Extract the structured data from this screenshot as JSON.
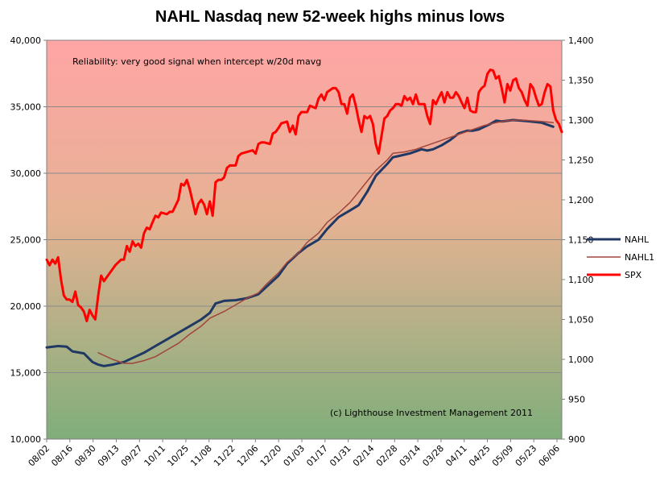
{
  "chart_data": {
    "type": "line",
    "title": "NAHL Nasdaq new 52-week highs minus lows",
    "annotations": {
      "reliability": "Reliability: very good signal when intercept w/20d mavg",
      "copyright": "(c) Lighthouse Investment Management  2011"
    },
    "x_ticks": [
      "08/02",
      "08/16",
      "08/30",
      "09/13",
      "09/27",
      "10/11",
      "10/25",
      "11/08",
      "11/22",
      "12/06",
      "12/20",
      "01/03",
      "01/17",
      "01/31",
      "02/14",
      "02/28",
      "03/14",
      "03/28",
      "04/11",
      "04/25",
      "05/09",
      "05/23",
      "06/06"
    ],
    "y_left": {
      "ticks": [
        "10,000",
        "15,000",
        "20,000",
        "25,000",
        "30,000",
        "35,000",
        "40,000"
      ],
      "ylim": [
        10000,
        40000
      ]
    },
    "y_right": {
      "ticks": [
        "900",
        "950",
        "1,000",
        "1,050",
        "1,100",
        "1,150",
        "1,200",
        "1,250",
        "1,300",
        "1,350",
        "1,400"
      ],
      "ylim": [
        900,
        1400
      ]
    },
    "legend_position": "right",
    "gridlines": true,
    "series": [
      {
        "name": "NAHL",
        "axis": "left",
        "color": "#1f3864",
        "points": [
          [
            0,
            16900
          ],
          [
            4,
            17000
          ],
          [
            7,
            16950
          ],
          [
            9,
            16600
          ],
          [
            13,
            16450
          ],
          [
            16,
            15800
          ],
          [
            18,
            15600
          ],
          [
            20,
            15500
          ],
          [
            23,
            15600
          ],
          [
            27,
            15800
          ],
          [
            30,
            16100
          ],
          [
            34,
            16500
          ],
          [
            38,
            17000
          ],
          [
            42,
            17500
          ],
          [
            46,
            18000
          ],
          [
            50,
            18500
          ],
          [
            54,
            19000
          ],
          [
            57,
            19500
          ],
          [
            59,
            20200
          ],
          [
            62,
            20400
          ],
          [
            66,
            20450
          ],
          [
            70,
            20600
          ],
          [
            74,
            20900
          ],
          [
            77,
            21500
          ],
          [
            81,
            22300
          ],
          [
            84,
            23200
          ],
          [
            88,
            24000
          ],
          [
            91,
            24500
          ],
          [
            95,
            25000
          ],
          [
            98,
            25800
          ],
          [
            102,
            26700
          ],
          [
            106,
            27200
          ],
          [
            109,
            27600
          ],
          [
            112,
            28600
          ],
          [
            115,
            29800
          ],
          [
            119,
            30700
          ],
          [
            121,
            31200
          ],
          [
            123,
            31300
          ],
          [
            127,
            31500
          ],
          [
            131,
            31800
          ],
          [
            133,
            31700
          ],
          [
            135,
            31800
          ],
          [
            138,
            32100
          ],
          [
            141,
            32500
          ],
          [
            144,
            33000
          ],
          [
            147,
            33200
          ],
          [
            149,
            33200
          ],
          [
            151,
            33300
          ],
          [
            153,
            33500
          ],
          [
            155,
            33700
          ],
          [
            157,
            33950
          ],
          [
            159,
            33900
          ],
          [
            163,
            34000
          ],
          [
            166,
            33950
          ],
          [
            169,
            33900
          ],
          [
            173,
            33800
          ],
          [
            177,
            33500
          ]
        ]
      },
      {
        "name": "NAHL1",
        "axis": "left",
        "color": "#a0453c",
        "points": [
          [
            18,
            16500
          ],
          [
            20,
            16300
          ],
          [
            23,
            16000
          ],
          [
            27,
            15700
          ],
          [
            30,
            15700
          ],
          [
            34,
            15900
          ],
          [
            38,
            16200
          ],
          [
            42,
            16700
          ],
          [
            46,
            17200
          ],
          [
            50,
            17900
          ],
          [
            54,
            18500
          ],
          [
            57,
            19100
          ],
          [
            62,
            19600
          ],
          [
            66,
            20100
          ],
          [
            70,
            20600
          ],
          [
            74,
            21000
          ],
          [
            77,
            21700
          ],
          [
            81,
            22500
          ],
          [
            84,
            23300
          ],
          [
            88,
            24000
          ],
          [
            91,
            24800
          ],
          [
            95,
            25500
          ],
          [
            98,
            26300
          ],
          [
            102,
            27000
          ],
          [
            106,
            27800
          ],
          [
            109,
            28600
          ],
          [
            112,
            29400
          ],
          [
            115,
            30200
          ],
          [
            119,
            31000
          ],
          [
            121,
            31500
          ],
          [
            125,
            31600
          ],
          [
            129,
            31800
          ],
          [
            133,
            32100
          ],
          [
            137,
            32400
          ],
          [
            141,
            32700
          ],
          [
            145,
            33000
          ],
          [
            149,
            33300
          ],
          [
            153,
            33600
          ],
          [
            157,
            33800
          ],
          [
            161,
            33950
          ],
          [
            165,
            34000
          ],
          [
            169,
            33950
          ],
          [
            173,
            33900
          ],
          [
            177,
            33800
          ]
        ]
      },
      {
        "name": "SPX",
        "axis": "right",
        "color": "#ff0000",
        "points": [
          [
            0,
            1125
          ],
          [
            1,
            1118
          ],
          [
            2,
            1125
          ],
          [
            3,
            1120
          ],
          [
            4,
            1128
          ],
          [
            5,
            1100
          ],
          [
            6,
            1080
          ],
          [
            7,
            1075
          ],
          [
            8,
            1075
          ],
          [
            9,
            1072
          ],
          [
            10,
            1085
          ],
          [
            11,
            1068
          ],
          [
            12,
            1065
          ],
          [
            13,
            1060
          ],
          [
            14,
            1048
          ],
          [
            15,
            1062
          ],
          [
            16,
            1055
          ],
          [
            17,
            1050
          ],
          [
            18,
            1080
          ],
          [
            19,
            1105
          ],
          [
            20,
            1098
          ],
          [
            22,
            1108
          ],
          [
            24,
            1118
          ],
          [
            26,
            1125
          ],
          [
            27,
            1125
          ],
          [
            28,
            1142
          ],
          [
            29,
            1135
          ],
          [
            30,
            1148
          ],
          [
            31,
            1142
          ],
          [
            32,
            1145
          ],
          [
            33,
            1140
          ],
          [
            34,
            1158
          ],
          [
            35,
            1165
          ],
          [
            36,
            1163
          ],
          [
            37,
            1172
          ],
          [
            38,
            1180
          ],
          [
            39,
            1178
          ],
          [
            40,
            1184
          ],
          [
            41,
            1183
          ],
          [
            42,
            1182
          ],
          [
            43,
            1185
          ],
          [
            44,
            1185
          ],
          [
            46,
            1200
          ],
          [
            47,
            1220
          ],
          [
            48,
            1218
          ],
          [
            49,
            1225
          ],
          [
            50,
            1213
          ],
          [
            51,
            1198
          ],
          [
            52,
            1182
          ],
          [
            53,
            1195
          ],
          [
            54,
            1200
          ],
          [
            55,
            1194
          ],
          [
            56,
            1182
          ],
          [
            57,
            1198
          ],
          [
            58,
            1180
          ],
          [
            59,
            1222
          ],
          [
            60,
            1225
          ],
          [
            61,
            1225
          ],
          [
            62,
            1228
          ],
          [
            63,
            1240
          ],
          [
            64,
            1243
          ],
          [
            66,
            1243
          ],
          [
            67,
            1255
          ],
          [
            68,
            1258
          ],
          [
            70,
            1260
          ],
          [
            72,
            1262
          ],
          [
            73,
            1258
          ],
          [
            74,
            1270
          ],
          [
            75,
            1272
          ],
          [
            76,
            1272
          ],
          [
            78,
            1270
          ],
          [
            79,
            1283
          ],
          [
            80,
            1285
          ],
          [
            81,
            1290
          ],
          [
            82,
            1296
          ],
          [
            84,
            1298
          ],
          [
            85,
            1285
          ],
          [
            86,
            1293
          ],
          [
            87,
            1282
          ],
          [
            88,
            1305
          ],
          [
            89,
            1310
          ],
          [
            91,
            1310
          ],
          [
            92,
            1318
          ],
          [
            94,
            1315
          ],
          [
            95,
            1327
          ],
          [
            96,
            1332
          ],
          [
            97,
            1325
          ],
          [
            98,
            1335
          ],
          [
            100,
            1340
          ],
          [
            101,
            1340
          ],
          [
            102,
            1335
          ],
          [
            103,
            1320
          ],
          [
            104,
            1320
          ],
          [
            105,
            1308
          ],
          [
            106,
            1328
          ],
          [
            107,
            1332
          ],
          [
            108,
            1318
          ],
          [
            109,
            1300
          ],
          [
            110,
            1285
          ],
          [
            111,
            1305
          ],
          [
            112,
            1302
          ],
          [
            113,
            1305
          ],
          [
            114,
            1295
          ],
          [
            115,
            1270
          ],
          [
            116,
            1258
          ],
          [
            117,
            1280
          ],
          [
            118,
            1302
          ],
          [
            119,
            1305
          ],
          [
            120,
            1312
          ],
          [
            121,
            1315
          ],
          [
            122,
            1320
          ],
          [
            123,
            1320
          ],
          [
            124,
            1318
          ],
          [
            125,
            1330
          ],
          [
            126,
            1325
          ],
          [
            127,
            1328
          ],
          [
            128,
            1320
          ],
          [
            129,
            1332
          ],
          [
            130,
            1320
          ],
          [
            131,
            1320
          ],
          [
            132,
            1320
          ],
          [
            133,
            1305
          ],
          [
            134,
            1295
          ],
          [
            135,
            1325
          ],
          [
            136,
            1320
          ],
          [
            137,
            1328
          ],
          [
            138,
            1335
          ],
          [
            139,
            1322
          ],
          [
            140,
            1335
          ],
          [
            141,
            1328
          ],
          [
            142,
            1328
          ],
          [
            143,
            1335
          ],
          [
            144,
            1330
          ],
          [
            145,
            1322
          ],
          [
            146,
            1315
          ],
          [
            147,
            1328
          ],
          [
            148,
            1312
          ],
          [
            149,
            1310
          ],
          [
            150,
            1310
          ],
          [
            151,
            1335
          ],
          [
            152,
            1340
          ],
          [
            153,
            1343
          ],
          [
            154,
            1358
          ],
          [
            155,
            1363
          ],
          [
            156,
            1362
          ],
          [
            157,
            1352
          ],
          [
            158,
            1355
          ],
          [
            159,
            1340
          ],
          [
            160,
            1322
          ],
          [
            161,
            1345
          ],
          [
            162,
            1337
          ],
          [
            163,
            1350
          ],
          [
            164,
            1352
          ],
          [
            165,
            1340
          ],
          [
            166,
            1335
          ],
          [
            167,
            1325
          ],
          [
            168,
            1318
          ],
          [
            169,
            1345
          ],
          [
            170,
            1340
          ],
          [
            171,
            1328
          ],
          [
            172,
            1318
          ],
          [
            173,
            1320
          ],
          [
            174,
            1335
          ],
          [
            175,
            1345
          ],
          [
            176,
            1342
          ],
          [
            177,
            1312
          ],
          [
            178,
            1300
          ],
          [
            179,
            1295
          ],
          [
            180,
            1285
          ]
        ]
      }
    ]
  }
}
